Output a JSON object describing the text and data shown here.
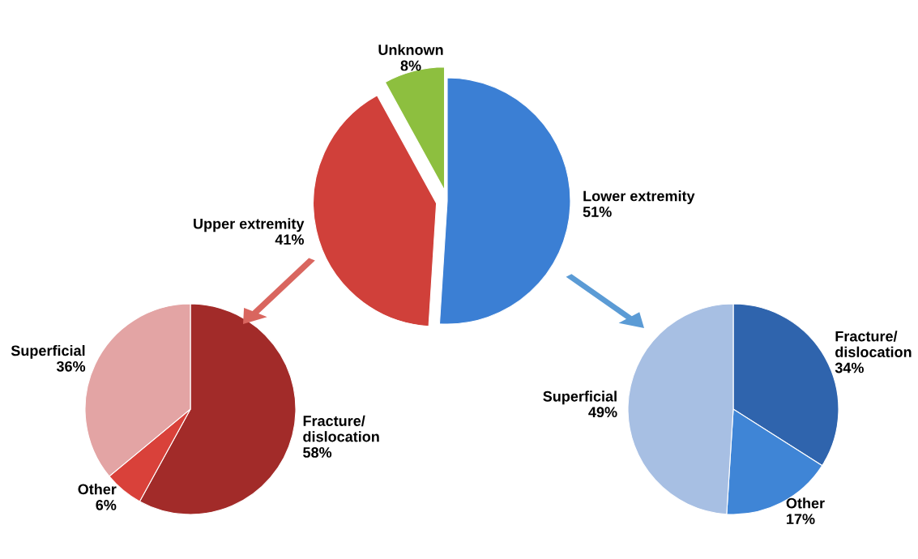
{
  "chart_data": [
    {
      "type": "pie",
      "categories": [
        "Lower extremity",
        "Upper extremity",
        "Unknown"
      ],
      "values": [
        51,
        41,
        8
      ],
      "value_labels": [
        "51%",
        "41%",
        "8%"
      ],
      "colors": [
        "#3b7fd4",
        "#d0403a",
        "#8dbf3f"
      ]
    },
    {
      "type": "pie",
      "categories": [
        "Fracture/\ndislocation",
        "Other",
        "Superficial"
      ],
      "values": [
        58,
        6,
        36
      ],
      "value_labels": [
        "58%",
        "6%",
        "36%"
      ],
      "colors": [
        "#a22b29",
        "#d9413a",
        "#e3a4a4"
      ]
    },
    {
      "type": "pie",
      "categories": [
        "Fracture/\ndislocation",
        "Other",
        "Superficial"
      ],
      "values": [
        34,
        17,
        49
      ],
      "value_labels": [
        "34%",
        "17%",
        "49%"
      ],
      "colors": [
        "#2f64ad",
        "#3f85d6",
        "#a7bfe3"
      ]
    }
  ]
}
